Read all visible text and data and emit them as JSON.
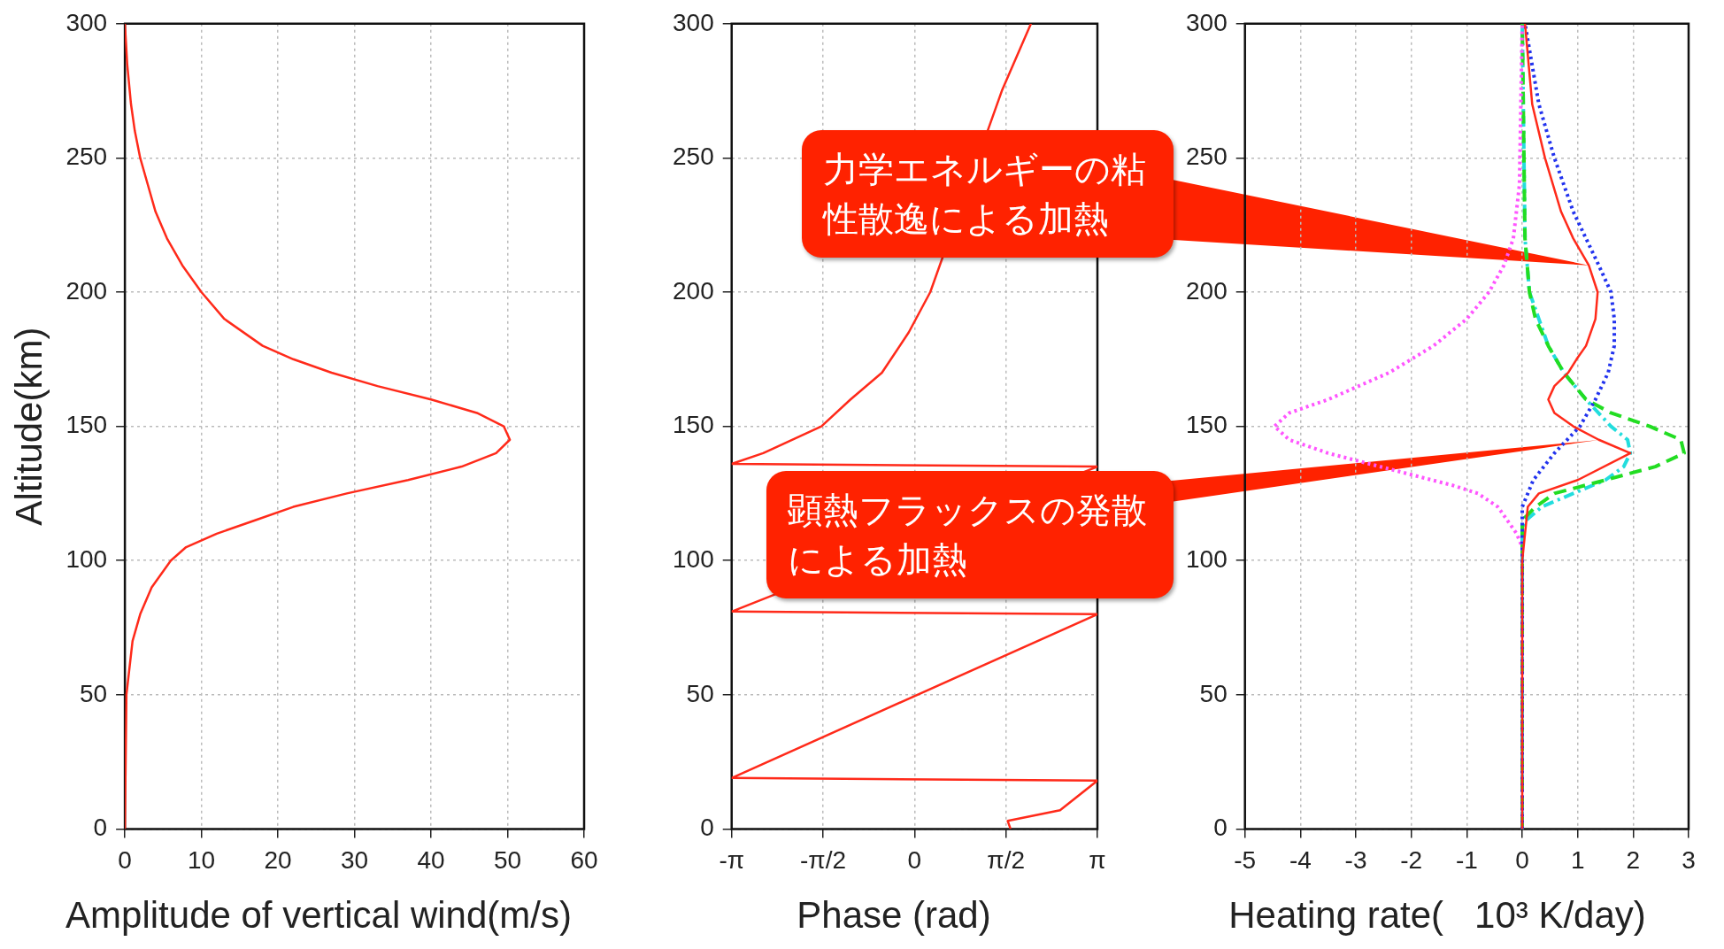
{
  "chart_data": [
    {
      "type": "line",
      "xlabel": "Amplitude of vertical wind(m/s)",
      "ylabel": "Altitude(km)",
      "xlim": [
        0,
        60
      ],
      "xticks": [
        0,
        10,
        20,
        30,
        40,
        50,
        60
      ],
      "ylim": [
        0,
        300
      ],
      "yticks": [
        0,
        50,
        100,
        150,
        200,
        250,
        300
      ],
      "grid": true,
      "legend": false,
      "marker": "none",
      "series": [
        {
          "color": "#ff2a1a",
          "line_style": "solid",
          "x": [
            0,
            0.2,
            1,
            2,
            3.5,
            6,
            8,
            12,
            17,
            22,
            29,
            37,
            44,
            48.5,
            50.3,
            49.5,
            46,
            40,
            33,
            27,
            22,
            18,
            13,
            10,
            7.5,
            5.5,
            4,
            3,
            2,
            1.3,
            0.8,
            0.3,
            0
          ],
          "values": [
            0,
            50,
            70,
            80,
            90,
            100,
            105,
            110,
            115,
            120,
            125,
            130,
            135,
            140,
            145,
            150,
            155,
            160,
            165,
            170,
            175,
            180,
            190,
            200,
            210,
            220,
            230,
            240,
            250,
            260,
            270,
            285,
            300
          ]
        }
      ]
    },
    {
      "type": "line",
      "xlabel": "Phase (rad)",
      "xlim": [
        -3.1416,
        3.1416
      ],
      "xticks": [
        {
          "value": -3.1416,
          "label": "-π"
        },
        {
          "value": -1.5708,
          "label": "-π/2"
        },
        {
          "value": 0,
          "label": "0"
        },
        {
          "value": 1.5708,
          "label": "π/2"
        },
        {
          "value": 3.1416,
          "label": "π"
        }
      ],
      "ylim": [
        0,
        300
      ],
      "yticks": [
        0,
        50,
        100,
        150,
        200,
        250,
        300
      ],
      "grid": true,
      "legend": false,
      "marker": "none",
      "series": [
        {
          "color": "#ff2a1a",
          "line_style": "solid",
          "x": [
            1.65,
            1.6,
            2.5,
            3.1416,
            -3.1416,
            3.1416,
            -3.1416,
            3.1416,
            -3.1416,
            -2.6,
            -1.6,
            -1.1,
            -0.56,
            -0.1,
            0.27,
            1.5,
            2.0
          ],
          "values": [
            0,
            3,
            7,
            18,
            19,
            80,
            81,
            135,
            136,
            140,
            150,
            160,
            170,
            185,
            200,
            275,
            300
          ]
        }
      ]
    },
    {
      "type": "line",
      "xlabel": "Heating rate(   10³ K/day)",
      "xlim": [
        -5,
        3
      ],
      "xticks": [
        -5,
        -4,
        -3,
        -2,
        -1,
        0,
        1,
        2,
        3
      ],
      "ylim": [
        0,
        300
      ],
      "yticks": [
        0,
        50,
        100,
        150,
        200,
        250,
        300
      ],
      "grid": true,
      "legend": false,
      "marker": "none",
      "annotations": [
        {
          "text": "力学エネルギーの粘性散逸による加熱",
          "x": 1.2,
          "y": 210
        },
        {
          "text": "顕熱フラックスの発散による加熱",
          "x": 1.38,
          "y": 145
        }
      ],
      "series": [
        {
          "color": "#ff2a1a",
          "line_style": "solid",
          "x": [
            0,
            0,
            0.05,
            0.1,
            0.3,
            1.0,
            1.95,
            1.38,
            0.92,
            0.58,
            0.47,
            0.58,
            0.83,
            0.98,
            1.15,
            1.32,
            1.36,
            1.2,
            0.92,
            0.7,
            0.41,
            0.18,
            0.05
          ],
          "values": [
            0,
            100,
            110,
            120,
            125,
            130,
            140,
            145,
            150,
            155,
            160,
            165,
            170,
            175,
            180,
            190,
            200,
            210,
            220,
            230,
            250,
            270,
            300
          ]
        },
        {
          "color": "#2233ee",
          "line_style": "dotted",
          "x": [
            0,
            0,
            0.1,
            0.2,
            0.58,
            1.04,
            1.32,
            1.55,
            1.66,
            1.66,
            1.6,
            1.38,
            1.15,
            0.92,
            0.58,
            0.3,
            0.05
          ],
          "values": [
            0,
            120,
            125,
            130,
            140,
            150,
            160,
            170,
            180,
            190,
            200,
            210,
            220,
            230,
            250,
            270,
            300
          ]
        },
        {
          "color": "#ff55ff",
          "line_style": "dotted",
          "x": [
            0,
            0,
            -0.1,
            -0.44,
            -0.8,
            -1.25,
            -3.5,
            -4.2,
            -4.47,
            -4.2,
            -3.5,
            -2.4,
            -1.6,
            -1.0,
            -0.6,
            -0.33,
            -0.16,
            -0.05,
            0
          ],
          "values": [
            0,
            105,
            110,
            120,
            125,
            128,
            140,
            145,
            150,
            155,
            160,
            170,
            180,
            190,
            200,
            210,
            220,
            240,
            300
          ]
        },
        {
          "color": "#22dd22",
          "line_style": "dashed",
          "x": [
            0,
            0,
            0.24,
            0.58,
            1.5,
            2.4,
            2.92,
            2.86,
            2.3,
            1.6,
            1.15,
            0.75,
            0.47,
            0.24,
            0.13,
            0.05,
            0
          ],
          "values": [
            0,
            115,
            120,
            125,
            130,
            135,
            140,
            145,
            150,
            155,
            160,
            170,
            180,
            190,
            200,
            220,
            300
          ]
        },
        {
          "color": "#22dddd",
          "line_style": "dashdot",
          "x": [
            0,
            0,
            0.07,
            0.35,
            0.92,
            1.5,
            1.83,
            1.95,
            1.9,
            1.6,
            1.15,
            0.75,
            0.47,
            0.3,
            0.13,
            0.05,
            0
          ],
          "values": [
            0,
            110,
            115,
            120,
            125,
            130,
            135,
            140,
            145,
            150,
            160,
            170,
            180,
            190,
            200,
            220,
            300
          ]
        }
      ]
    }
  ]
}
